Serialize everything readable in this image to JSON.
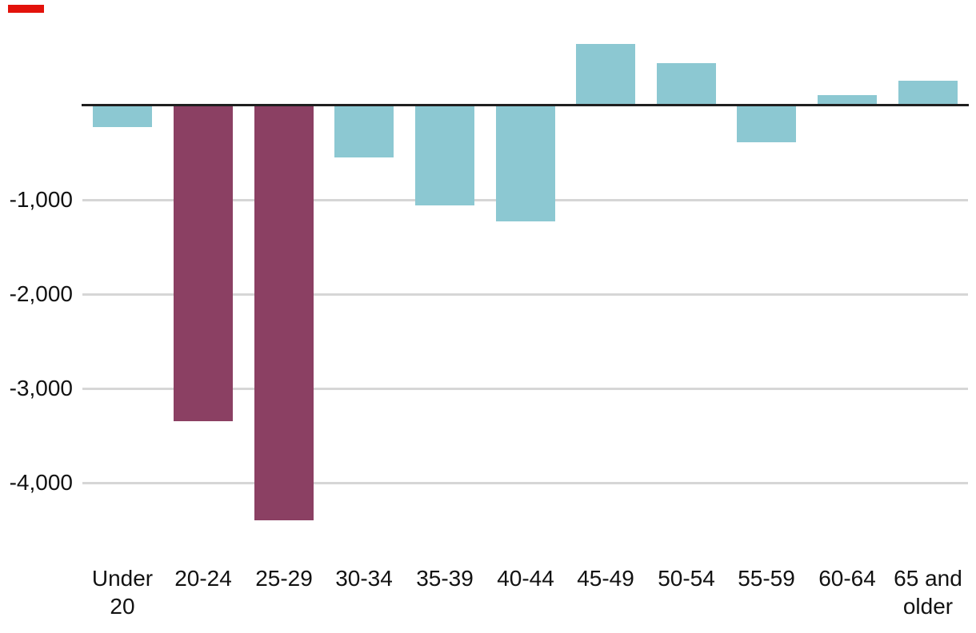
{
  "chart_data": {
    "type": "bar",
    "title": "",
    "xlabel": "",
    "ylabel": "",
    "categories": [
      "Under 20",
      "20-24",
      "25-29",
      "30-34",
      "35-39",
      "40-44",
      "45-49",
      "50-54",
      "55-59",
      "60-64",
      "65 and older"
    ],
    "values": [
      -230,
      -3350,
      -4400,
      -550,
      -1060,
      -1230,
      650,
      450,
      -390,
      110,
      260
    ],
    "highlighted_categories": [
      "20-24",
      "25-29"
    ],
    "yticks": [
      -1000,
      -2000,
      -3000,
      -4000
    ],
    "ytick_labels": [
      "-1,000",
      "-2,000",
      "-3,000",
      "-4,000"
    ],
    "ylim": [
      -4600,
      700
    ],
    "grid": "horizontal gridlines at labeled ticks, drawn behind bars",
    "legend": "none",
    "colors": {
      "bar_default": "#8CC8D2",
      "bar_highlight": "#8B4063",
      "zero_axis": "#1F1F1F",
      "gridline": "#D6D6D6",
      "text": "#121212",
      "accent_tab": "#E3120B"
    }
  }
}
